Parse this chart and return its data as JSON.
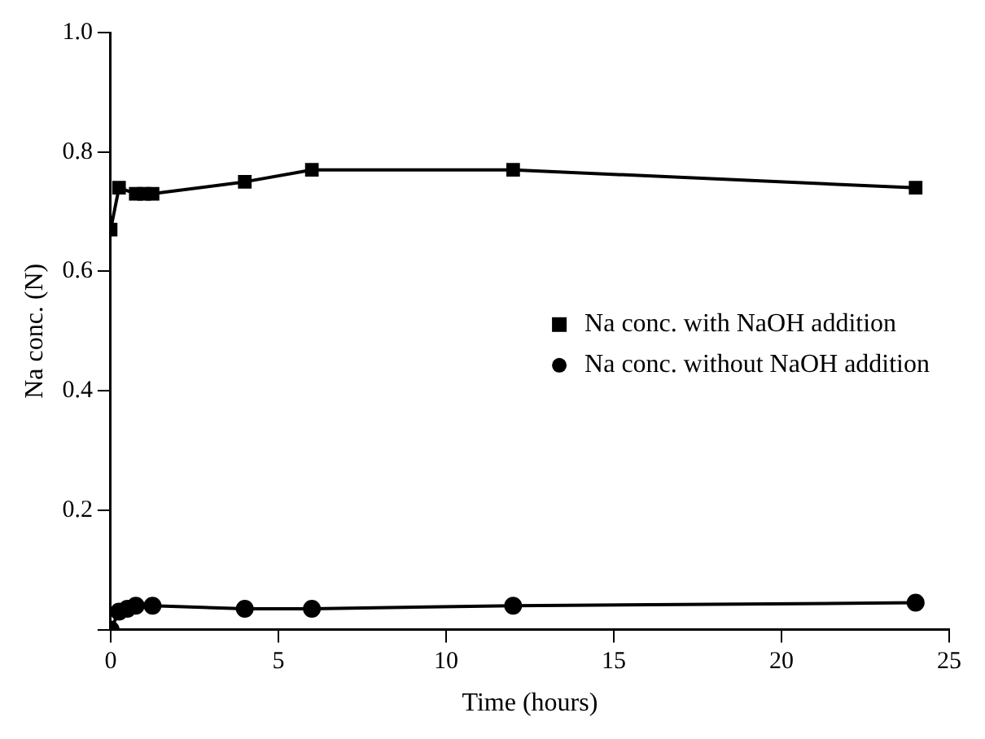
{
  "chart_data": {
    "type": "line",
    "xlabel": "Time (hours)",
    "ylabel": "Na conc. (N)",
    "xlim": [
      0,
      25
    ],
    "xticks": [
      0,
      5,
      10,
      15,
      20,
      25
    ],
    "ylim": [
      0,
      1.0
    ],
    "yticks": [
      {
        "value": 0,
        "label": null
      },
      {
        "value": 0.2,
        "label": "0.2"
      },
      {
        "value": 0.4,
        "label": "0.4"
      },
      {
        "value": 0.6,
        "label": "0.6"
      },
      {
        "value": 0.8,
        "label": "0.8"
      },
      {
        "value": 1.0,
        "label": "1.0"
      }
    ],
    "grid": false,
    "legend": "right",
    "line_style": "solid",
    "series": [
      {
        "name": "Na conc. with NaOH addition",
        "color": "#000000",
        "marker": "square",
        "x": [
          0,
          0.25,
          0.75,
          1,
          1.25,
          4,
          6,
          12,
          24
        ],
        "values": [
          0.67,
          0.74,
          0.73,
          0.73,
          0.73,
          0.75,
          0.77,
          0.77,
          0.74
        ]
      },
      {
        "name": "Na conc. without NaOH addition",
        "color": "#000000",
        "marker": "circle",
        "x": [
          0,
          0.25,
          0.5,
          0.75,
          1.25,
          4,
          6,
          12,
          24
        ],
        "values": [
          0,
          0.03,
          0.035,
          0.04,
          0.04,
          0.035,
          0.035,
          0.04,
          0.045
        ]
      }
    ]
  }
}
